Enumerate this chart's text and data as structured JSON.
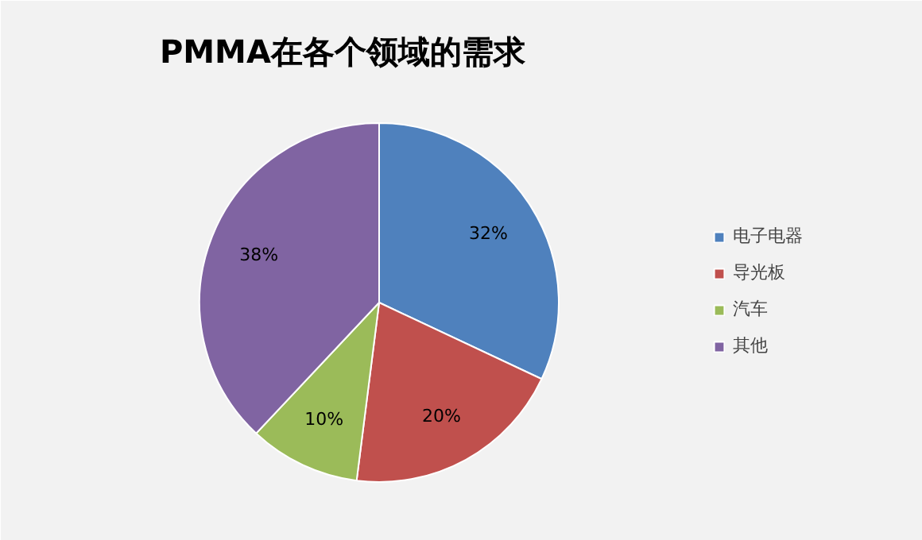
{
  "chart_data": {
    "type": "pie",
    "title": "PMMA在各个领域的需求",
    "categories": [
      "电子电器",
      "导光板",
      "汽车",
      "其他"
    ],
    "values": [
      32,
      20,
      10,
      38
    ],
    "colors": [
      "#4f81bd",
      "#c0504d",
      "#9bbb59",
      "#8064a2"
    ],
    "value_labels": [
      "32%",
      "20%",
      "10%",
      "38%"
    ],
    "legend": "right"
  }
}
